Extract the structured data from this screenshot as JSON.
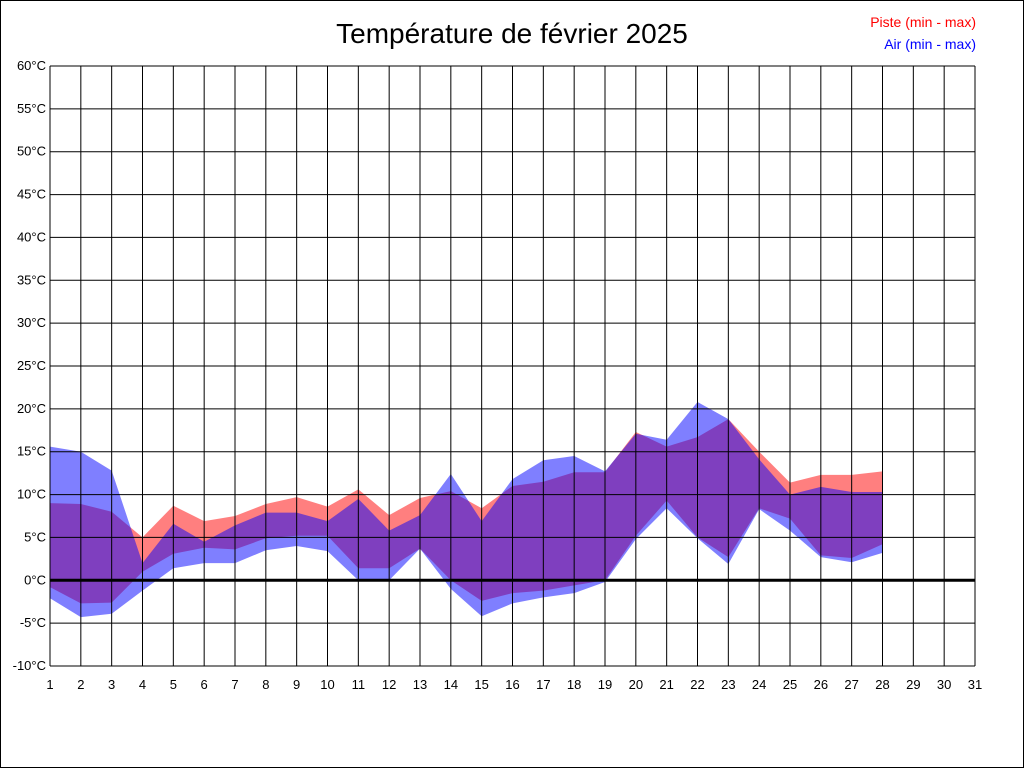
{
  "chart_data": {
    "type": "area",
    "title": "Température de février 2025",
    "xlabel": "",
    "ylabel": "",
    "x": [
      1,
      2,
      3,
      4,
      5,
      6,
      7,
      8,
      9,
      10,
      11,
      12,
      13,
      14,
      15,
      16,
      17,
      18,
      19,
      20,
      21,
      22,
      23,
      24,
      25,
      26,
      27,
      28
    ],
    "x_ticks": [
      "1",
      "2",
      "3",
      "4",
      "5",
      "6",
      "7",
      "8",
      "9",
      "10",
      "11",
      "12",
      "13",
      "14",
      "15",
      "16",
      "17",
      "18",
      "19",
      "20",
      "21",
      "22",
      "23",
      "24",
      "25",
      "26",
      "27",
      "28",
      "29",
      "30",
      "31"
    ],
    "xlim": [
      1,
      31
    ],
    "ylim": [
      -10,
      60
    ],
    "y_ticks": [
      "-10°C",
      "-5°C",
      "0°C",
      "5°C",
      "10°C",
      "15°C",
      "20°C",
      "25°C",
      "30°C",
      "35°C",
      "40°C",
      "45°C",
      "50°C",
      "55°C",
      "60°C"
    ],
    "y_tick_values": [
      -10,
      -5,
      0,
      5,
      10,
      15,
      20,
      25,
      30,
      35,
      40,
      45,
      50,
      55,
      60
    ],
    "grid": true,
    "legend_placement": "top-right",
    "series": [
      {
        "name": "Piste (min - max)",
        "color": "#ff0000",
        "min": [
          -0.8,
          -2.7,
          -2.6,
          1.0,
          3.1,
          3.8,
          3.6,
          4.9,
          5.2,
          5.2,
          1.4,
          1.4,
          3.7,
          0.0,
          -2.4,
          -1.5,
          -1.2,
          -0.6,
          0.0,
          5.2,
          9.3,
          5.0,
          2.7,
          8.4,
          7.2,
          2.9,
          2.6,
          4.2
        ],
        "max": [
          9.0,
          8.9,
          8.0,
          5.0,
          8.7,
          6.9,
          7.5,
          8.9,
          9.7,
          8.6,
          10.6,
          7.6,
          9.6,
          10.4,
          8.4,
          11.0,
          11.5,
          12.6,
          12.6,
          17.3,
          15.6,
          16.7,
          18.8,
          15.0,
          11.4,
          12.3,
          12.3,
          12.7
        ]
      },
      {
        "name": "Air (min - max)",
        "color": "#0000ff",
        "min": [
          -2.1,
          -4.3,
          -3.9,
          -1.2,
          1.4,
          2.0,
          2.0,
          3.5,
          4.0,
          3.4,
          0.0,
          0.0,
          3.7,
          -1.0,
          -4.2,
          -2.7,
          -2.0,
          -1.5,
          -0.2,
          4.8,
          8.4,
          4.9,
          1.9,
          8.3,
          5.8,
          2.7,
          2.1,
          3.2
        ],
        "max": [
          15.6,
          15.0,
          12.8,
          2.0,
          6.6,
          4.5,
          6.4,
          7.9,
          7.9,
          6.9,
          9.5,
          5.8,
          7.6,
          12.4,
          6.9,
          11.8,
          14.0,
          14.5,
          12.7,
          17.1,
          16.4,
          20.8,
          18.8,
          14.1,
          10.0,
          10.9,
          10.3,
          10.3
        ]
      }
    ]
  }
}
